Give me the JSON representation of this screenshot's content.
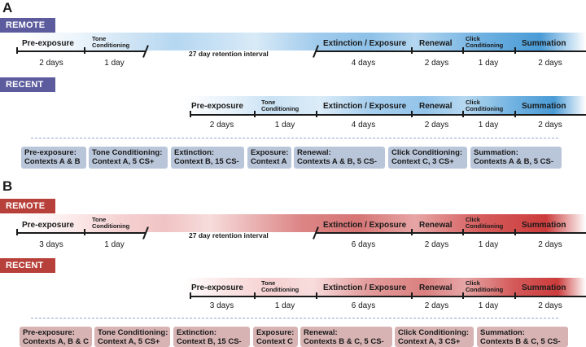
{
  "panel_a": {
    "letter": "A",
    "remote": {
      "tag": "REMOTE",
      "segments": [
        "Pre-exposure",
        "Tone Conditioning",
        "Extinction / Exposure",
        "Renewal",
        "Click Conditioning",
        "Summation"
      ],
      "retention": "27 day retention interval",
      "durations": [
        "2 days",
        "1 day",
        "4 days",
        "2 days",
        "1 day",
        "2 days"
      ]
    },
    "recent": {
      "tag": "RECENT",
      "segments": [
        "Pre-exposure",
        "Tone Conditioning",
        "Extinction / Exposure",
        "Renewal",
        "Click Conditioning",
        "Summation"
      ],
      "durations": [
        "2 days",
        "1 day",
        "4 days",
        "2 days",
        "1 day",
        "2 days"
      ]
    },
    "boxes": [
      {
        "line1": "Pre-exposure:",
        "line2": "Contexts A & B"
      },
      {
        "line1": "Tone Conditioning:",
        "line2": "Context A, 5 CS+"
      },
      {
        "line1": "Extinction:",
        "line2": "Context B, 15 CS-"
      },
      {
        "line1": "Exposure:",
        "line2": "Context A"
      },
      {
        "line1": "Renewal:",
        "line2": "Contexts A & B, 5 CS-"
      },
      {
        "line1": "Click Conditioning:",
        "line2": "Context C, 3 CS+"
      },
      {
        "line1": "Summation:",
        "line2": "Contexts A & B, 5 CS-"
      }
    ]
  },
  "panel_b": {
    "letter": "B",
    "remote": {
      "tag": "REMOTE",
      "segments": [
        "Pre-exposure",
        "Tone Conditioning",
        "Extinction / Exposure",
        "Renewal",
        "Click Conditioning",
        "Summation"
      ],
      "retention": "27 day retention interval",
      "durations": [
        "3 days",
        "1 day",
        "6 days",
        "2 days",
        "1 day",
        "2 days"
      ]
    },
    "recent": {
      "tag": "RECENT",
      "segments": [
        "Pre-exposure",
        "Tone Conditioning",
        "Extinction / Exposure",
        "Renewal",
        "Click Conditioning",
        "Summation"
      ],
      "durations": [
        "3 days",
        "1 day",
        "6 days",
        "2 days",
        "1 day",
        "2 days"
      ]
    },
    "boxes": [
      {
        "line1": "Pre-exposure:",
        "line2": "Contexts A, B & C"
      },
      {
        "line1": "Tone Conditioning:",
        "line2": "Context A, 5 CS+"
      },
      {
        "line1": "Extinction:",
        "line2": "Context B, 15 CS-"
      },
      {
        "line1": "Exposure:",
        "line2": "Context C"
      },
      {
        "line1": "Renewal:",
        "line2": "Contexts B & C, 5 CS-"
      },
      {
        "line1": "Click Conditioning:",
        "line2": "Context A, 3 CS+"
      },
      {
        "line1": "Summation:",
        "line2": "Contexts B & C, 5 CS-"
      }
    ]
  },
  "colors": {
    "remote_tag": "#5b5b9e",
    "recent_tag": "#5b5b9e",
    "remote_tag_b": "#b8403a",
    "recent_tag_b": "#b8403a",
    "blue_band": "#5aa2d8",
    "red_band": "#d24a4a"
  }
}
